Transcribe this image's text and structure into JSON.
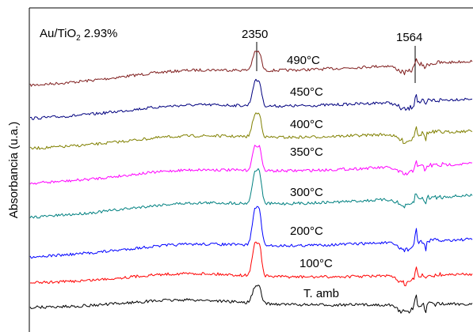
{
  "chart_data": {
    "type": "line",
    "sample_label": {
      "prefix": "Au/TiO",
      "subscript": "2",
      "suffix": " 2.93%"
    },
    "ylabel": "Absorbancia (u.a.)",
    "annotations": [
      "2350",
      "1564"
    ],
    "grid": false,
    "series": [
      {
        "name": "490°C",
        "color": "#7f1d1d"
      },
      {
        "name": "450°C",
        "color": "#00007f"
      },
      {
        "name": "400°C",
        "color": "#808000"
      },
      {
        "name": "350°C",
        "color": "#ff00ff"
      },
      {
        "name": "300°C",
        "color": "#008080"
      },
      {
        "name": "200°C",
        "color": "#0000ff"
      },
      {
        "name": "100°C",
        "color": "#ff0000"
      },
      {
        "name": "T. amb",
        "color": "#000000"
      }
    ]
  }
}
